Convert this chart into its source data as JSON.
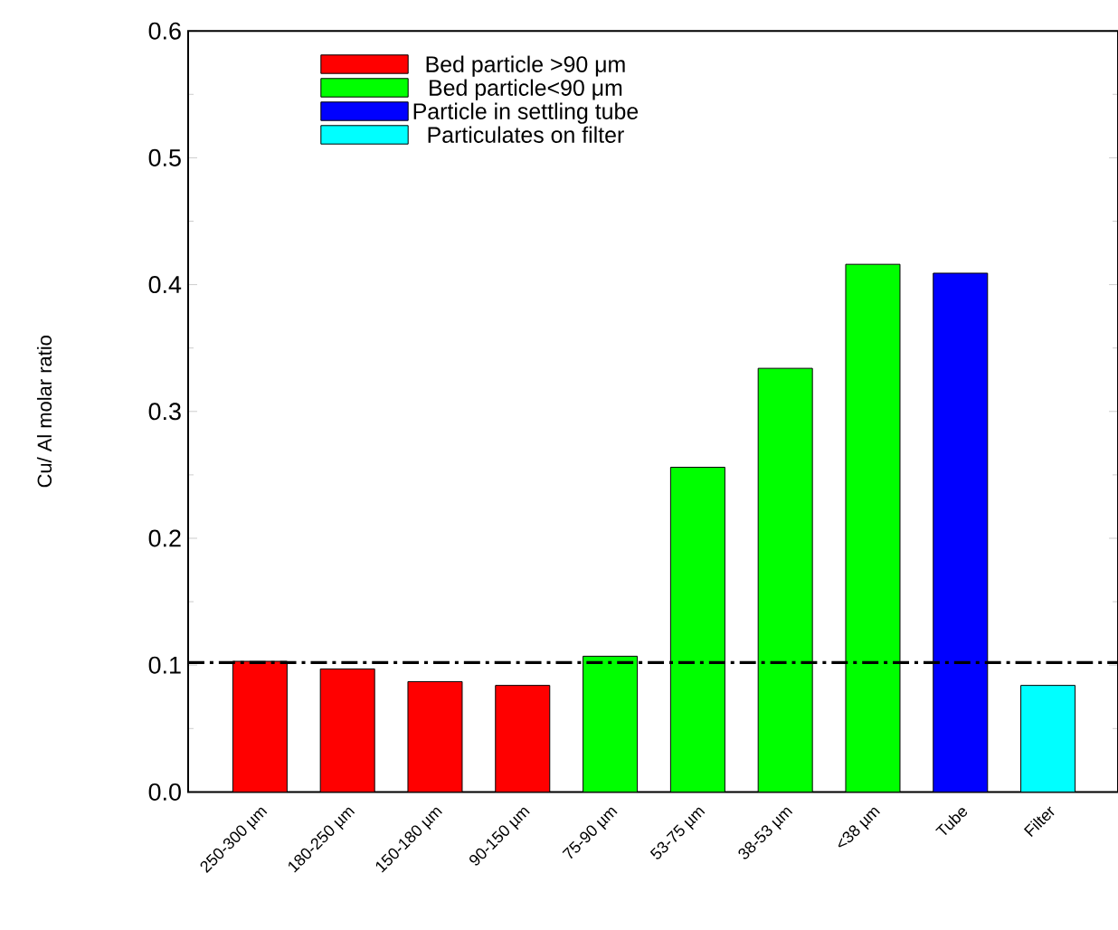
{
  "chart_data": {
    "type": "bar",
    "ylabel": "Cu/ Al molar ratio",
    "categories": [
      "250-300 µm",
      "180-250 µm",
      "150-180 µm",
      "90-150 µm",
      "75-90 µm",
      "53-75 µm",
      "38-53 µm",
      "<38 µm",
      "Tube",
      "Filter"
    ],
    "series": [
      {
        "name": "Bed particle >90 μm",
        "color": "#ff0000",
        "values": [
          0.103,
          0.097,
          0.087,
          0.084,
          null,
          null,
          null,
          null,
          null,
          null
        ]
      },
      {
        "name": "Bed particle<90 μm",
        "color": "#00ff00",
        "values": [
          null,
          null,
          null,
          null,
          0.107,
          0.256,
          0.334,
          0.416,
          null,
          null
        ]
      },
      {
        "name": "Particle in settling tube",
        "color": "#0000ff",
        "values": [
          null,
          null,
          null,
          null,
          null,
          null,
          null,
          null,
          0.409,
          null
        ]
      },
      {
        "name": "Particulates on filter",
        "color": "#00ffff",
        "values": [
          null,
          null,
          null,
          null,
          null,
          null,
          null,
          null,
          null,
          0.084
        ]
      }
    ],
    "ylim": [
      0,
      0.6
    ],
    "yticks": [
      {
        "value": 0,
        "label": "0.0"
      },
      0.1,
      0.2,
      0.3,
      0.4,
      0.5,
      0.6
    ],
    "ref_lines": [
      {
        "axis": "y",
        "value": 0.102,
        "color": "#000000",
        "line_style": "dashdot"
      }
    ],
    "legend": "top left"
  }
}
